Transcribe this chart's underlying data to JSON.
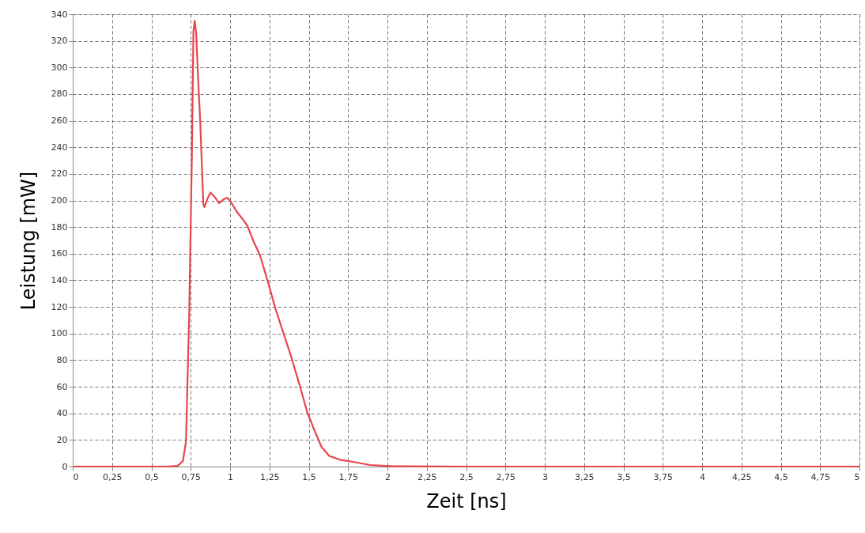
{
  "chart_data": {
    "type": "line",
    "xlabel": "Zeit [ns]",
    "ylabel": "Leistung [mW]",
    "x": [
      0,
      0.3,
      0.6,
      0.666,
      0.7,
      0.72,
      0.74,
      0.757,
      0.767,
      0.775,
      0.785,
      0.797,
      0.81,
      0.83,
      0.837,
      0.855,
      0.875,
      0.9,
      0.93,
      0.96,
      0.98,
      1.0,
      1.04,
      1.08,
      1.11,
      1.15,
      1.19,
      1.24,
      1.29,
      1.34,
      1.39,
      1.44,
      1.49,
      1.53,
      1.58,
      1.63,
      1.7,
      1.76,
      1.89,
      2.04,
      2.5,
      3,
      3.5,
      4,
      4.5,
      5
    ],
    "series": [
      {
        "color": "#e8454a",
        "values": [
          0,
          0,
          0,
          0.5,
          4,
          19,
          114,
          232,
          327,
          335,
          325,
          291,
          260,
          197,
          195,
          201,
          206,
          203,
          198,
          201,
          202,
          200,
          192,
          186,
          181,
          169,
          159,
          139,
          118,
          100,
          82,
          62,
          41,
          29,
          15,
          8,
          5,
          4,
          1.2,
          0.2,
          0,
          0,
          0,
          0,
          0,
          0
        ]
      }
    ],
    "xlim": [
      0,
      5
    ],
    "ylim": [
      0,
      340
    ],
    "xticks": [
      0,
      {
        "value": 0.25,
        "label": "0,25"
      },
      {
        "value": 0.5,
        "label": "0,5"
      },
      {
        "value": 0.75,
        "label": "0,75"
      },
      1,
      {
        "value": 1.25,
        "label": "1,25"
      },
      {
        "value": 1.5,
        "label": "1,5"
      },
      {
        "value": 1.75,
        "label": "1,75"
      },
      2,
      {
        "value": 2.25,
        "label": "2,25"
      },
      {
        "value": 2.5,
        "label": "2,5"
      },
      {
        "value": 2.75,
        "label": "2,75"
      },
      3,
      {
        "value": 3.25,
        "label": "3,25"
      },
      {
        "value": 3.5,
        "label": "3,5"
      },
      {
        "value": 3.75,
        "label": "3,75"
      },
      4,
      {
        "value": 4.25,
        "label": "4,25"
      },
      {
        "value": 4.5,
        "label": "4,5"
      },
      {
        "value": 4.75,
        "label": "4,75"
      },
      5
    ],
    "yticks": [
      0,
      20,
      40,
      60,
      80,
      100,
      120,
      140,
      160,
      180,
      200,
      220,
      240,
      260,
      280,
      300,
      320,
      340
    ],
    "grid": true,
    "marker": "none",
    "line_style": "solid"
  }
}
